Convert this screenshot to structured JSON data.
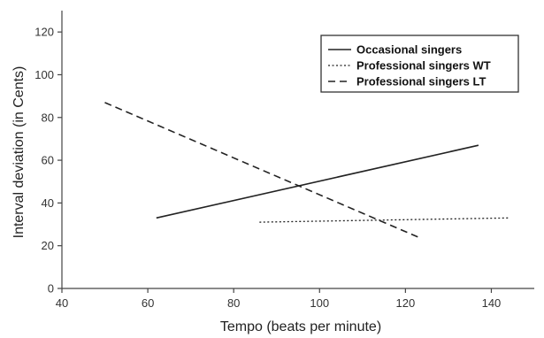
{
  "chart_data": {
    "type": "line",
    "title": "",
    "xlabel": "Tempo (beats per minute)",
    "ylabel": "Interval deviation (in Cents)",
    "xlim": [
      40,
      150
    ],
    "ylim": [
      0,
      130
    ],
    "xticks": [
      40,
      60,
      80,
      100,
      120,
      140
    ],
    "yticks": [
      0,
      20,
      40,
      60,
      80,
      100,
      120
    ],
    "grid": false,
    "legend_position": "top-right",
    "series": [
      {
        "name": "Occasional singers",
        "style": "solid",
        "color": "#222222",
        "x": [
          62,
          137
        ],
        "y": [
          33,
          67
        ]
      },
      {
        "name": "Professional singers WT",
        "style": "dotted",
        "color": "#222222",
        "x": [
          86,
          144
        ],
        "y": [
          31,
          33
        ]
      },
      {
        "name": "Professional singers LT",
        "style": "dashed",
        "color": "#222222",
        "x": [
          50,
          123
        ],
        "y": [
          87,
          24
        ]
      }
    ]
  }
}
